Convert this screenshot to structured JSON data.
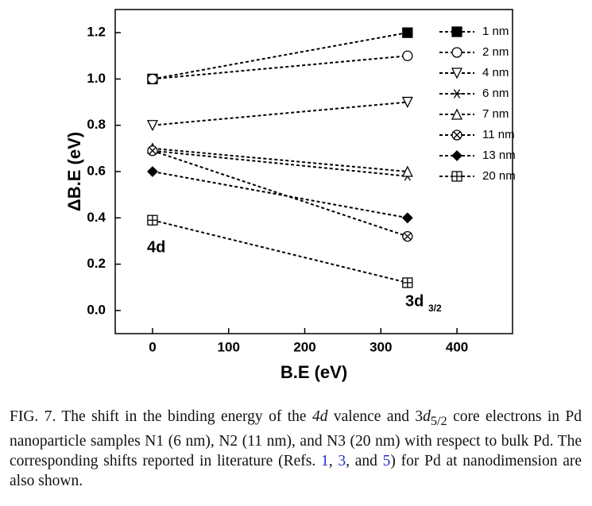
{
  "chart_data": {
    "type": "line",
    "xlabel": "B.E (eV)",
    "ylabel": "ΔB.E (eV)",
    "x": [
      0,
      335
    ],
    "xlim": [
      -49,
      473
    ],
    "xticks": [
      0,
      100,
      200,
      300,
      400
    ],
    "ylim": [
      -0.1,
      1.3
    ],
    "yticks": [
      {
        "value": 0,
        "label": "0.0"
      },
      0.2,
      0.4,
      0.6,
      0.8,
      {
        "value": 1,
        "label": "1.0"
      },
      1.2
    ],
    "legend": "upper right",
    "annotations": [
      "4d",
      "3d",
      "3/2"
    ],
    "series": [
      {
        "name": "1 nm",
        "color": "#000000",
        "marker": "square-filled",
        "values": [
          1.0,
          1.2
        ]
      },
      {
        "name": "2 nm",
        "color": "#000000",
        "marker": "circle-open",
        "values": [
          1.0,
          1.1
        ]
      },
      {
        "name": "4 nm",
        "color": "#000000",
        "marker": "triangle-down-open",
        "values": [
          0.8,
          0.9
        ]
      },
      {
        "name": "6 nm",
        "color": "#000000",
        "marker": "asterisk",
        "values": [
          0.69,
          0.58
        ]
      },
      {
        "name": "7 nm",
        "color": "#000000",
        "marker": "triangle-up-open",
        "values": [
          0.7,
          0.6
        ]
      },
      {
        "name": "11 nm",
        "color": "#000000",
        "marker": "circle-x",
        "values": [
          0.69,
          0.32
        ]
      },
      {
        "name": "13 nm",
        "color": "#000000",
        "marker": "diamond-filled",
        "values": [
          0.6,
          0.4
        ]
      },
      {
        "name": "20 nm",
        "color": "#000000",
        "marker": "square-plus",
        "values": [
          0.39,
          0.12
        ]
      }
    ]
  },
  "caption": [
    "FIG. 7. The shift in the binding energy of the ",
    "4d",
    " valence and 3",
    "d",
    "5/2",
    " core electrons in Pd nanoparticle samples N1 (6 nm), N2 (11 nm), and N3 (20 nm) with respect to bulk Pd. The corresponding shifts reported in literature (Refs. ",
    "1",
    ", ",
    "3",
    ", and ",
    "5",
    ") for Pd at nanodimension are also shown."
  ]
}
